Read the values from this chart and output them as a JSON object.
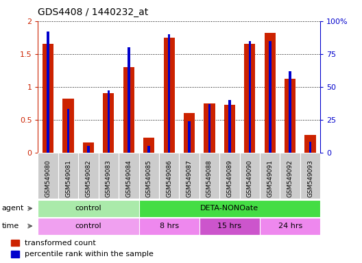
{
  "title": "GDS4408 / 1440232_at",
  "categories": [
    "GSM549080",
    "GSM549081",
    "GSM549082",
    "GSM549083",
    "GSM549084",
    "GSM549085",
    "GSM549086",
    "GSM549087",
    "GSM549088",
    "GSM549089",
    "GSM549090",
    "GSM549091",
    "GSM549092",
    "GSM549093"
  ],
  "red_values": [
    1.65,
    0.82,
    0.15,
    0.9,
    1.3,
    0.23,
    1.75,
    0.6,
    0.75,
    0.73,
    1.65,
    1.82,
    1.12,
    0.27
  ],
  "blue_values_pct": [
    92,
    33,
    5,
    47,
    80,
    5,
    90,
    24,
    37,
    40,
    85,
    85,
    62,
    8
  ],
  "ylim_left": [
    0,
    2
  ],
  "ylim_right": [
    0,
    100
  ],
  "yticks_left": [
    0,
    0.5,
    1.0,
    1.5,
    2.0
  ],
  "yticks_right": [
    0,
    25,
    50,
    75,
    100
  ],
  "ytick_labels_left": [
    "0",
    "0.5",
    "1",
    "1.5",
    "2"
  ],
  "ytick_labels_right": [
    "0",
    "25",
    "50",
    "75",
    "100%"
  ],
  "agent_groups": [
    {
      "label": "control",
      "start": 0,
      "end": 5,
      "color": "#aaeaaa"
    },
    {
      "label": "DETA-NONOate",
      "start": 5,
      "end": 14,
      "color": "#44dd44"
    }
  ],
  "time_groups": [
    {
      "label": "control",
      "start": 0,
      "end": 5,
      "color": "#f0a0f0"
    },
    {
      "label": "8 hrs",
      "start": 5,
      "end": 8,
      "color": "#ee88ee"
    },
    {
      "label": "15 hrs",
      "start": 8,
      "end": 11,
      "color": "#cc55cc"
    },
    {
      "label": "24 hrs",
      "start": 11,
      "end": 14,
      "color": "#ee88ee"
    }
  ],
  "legend_items": [
    {
      "color": "#cc2200",
      "label": "transformed count"
    },
    {
      "color": "#0000cc",
      "label": "percentile rank within the sample"
    }
  ],
  "red_bar_width": 0.55,
  "blue_bar_width": 0.12,
  "red_color": "#cc2200",
  "blue_color": "#0000cc",
  "tick_label_color_left": "#cc2200",
  "tick_label_color_right": "#0000cc",
  "xtick_label_color": "#000000",
  "xtick_bg_color": "#cccccc"
}
